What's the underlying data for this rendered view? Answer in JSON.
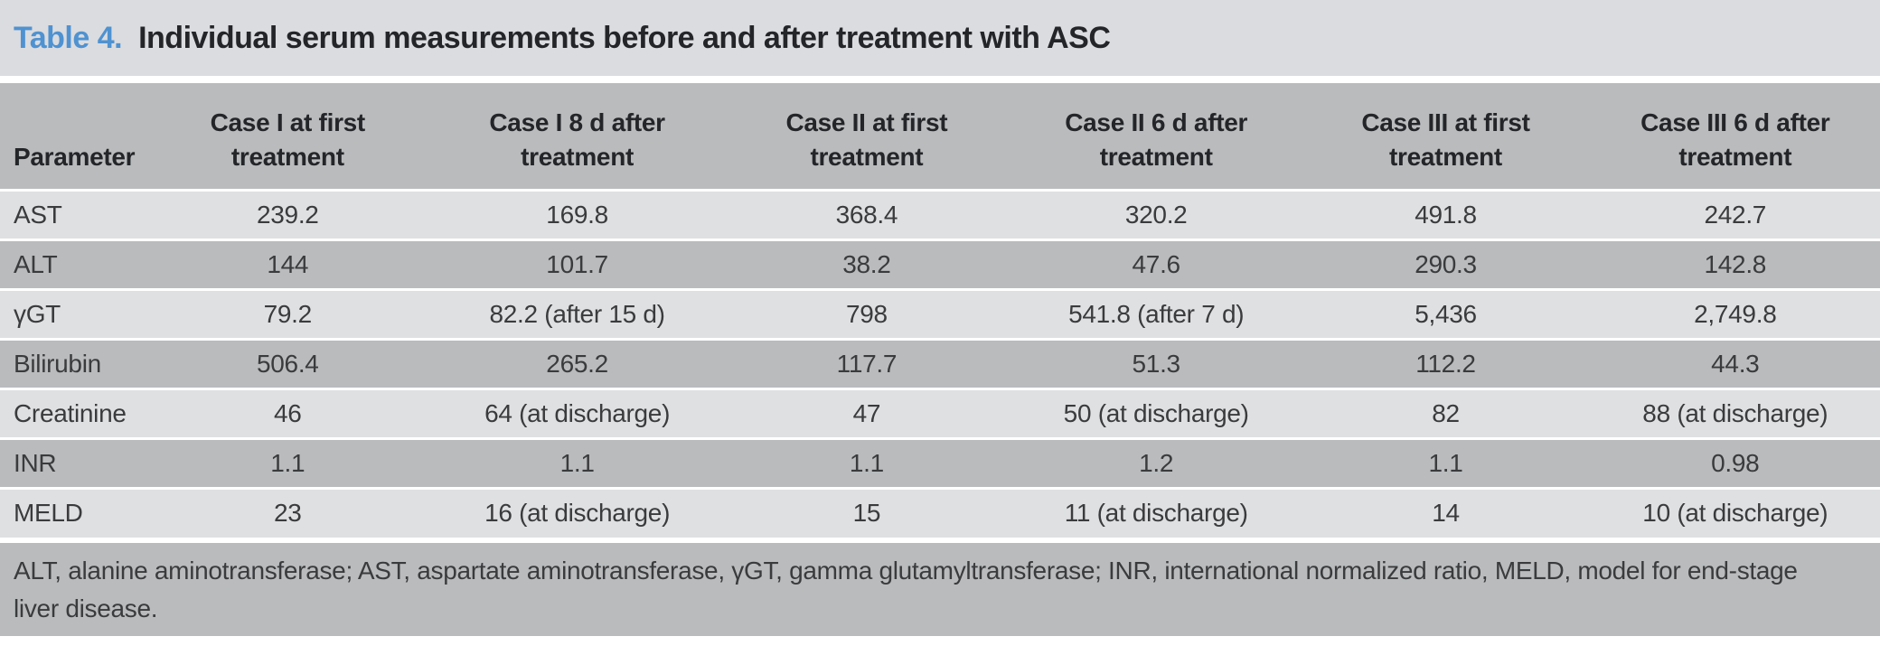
{
  "title": {
    "number_label": "Table 4.",
    "text": "Individual serum measurements before and after treatment with ASC"
  },
  "colors": {
    "accent_blue": "#4f92d1",
    "row_light": "#dfe0e2",
    "row_dark": "#b9bbbd",
    "title_band": "#dbdcdf",
    "text_dark": "#232528"
  },
  "table": {
    "columns": [
      "Parameter",
      "Case I at first\ntreatment",
      "Case I 8 d after\ntreatment",
      "Case II at first\ntreatment",
      "Case II 6 d after\ntreatment",
      "Case III at first\ntreatment",
      "Case III 6 d after\ntreatment"
    ],
    "rows": [
      {
        "parameter": "AST",
        "values": [
          "239.2",
          "169.8",
          "368.4",
          "320.2",
          "491.8",
          "242.7"
        ]
      },
      {
        "parameter": "ALT",
        "values": [
          "144",
          "101.7",
          "38.2",
          "47.6",
          "290.3",
          "142.8"
        ]
      },
      {
        "parameter": "γGT",
        "values": [
          "79.2",
          "82.2 (after 15 d)",
          "798",
          "541.8 (after 7 d)",
          "5,436",
          "2,749.8"
        ]
      },
      {
        "parameter": "Bilirubin",
        "values": [
          "506.4",
          "265.2",
          "117.7",
          "51.3",
          "112.2",
          "44.3"
        ]
      },
      {
        "parameter": "Creatinine",
        "values": [
          "46",
          "64 (at discharge)",
          "47",
          "50 (at discharge)",
          "82",
          "88 (at discharge)"
        ]
      },
      {
        "parameter": "INR",
        "values": [
          "1.1",
          "1.1",
          "1.1",
          "1.2",
          "1.1",
          "0.98"
        ]
      },
      {
        "parameter": "MELD",
        "values": [
          "23",
          "16 (at discharge)",
          "15",
          "11 (at discharge)",
          "14",
          "10 (at discharge)"
        ]
      }
    ],
    "footnote": "ALT, alanine aminotransferase; AST, aspartate aminotransferase, γGT, gamma glutamyltransferase; INR, international normalized ratio, MELD, model for end-stage liver disease."
  }
}
